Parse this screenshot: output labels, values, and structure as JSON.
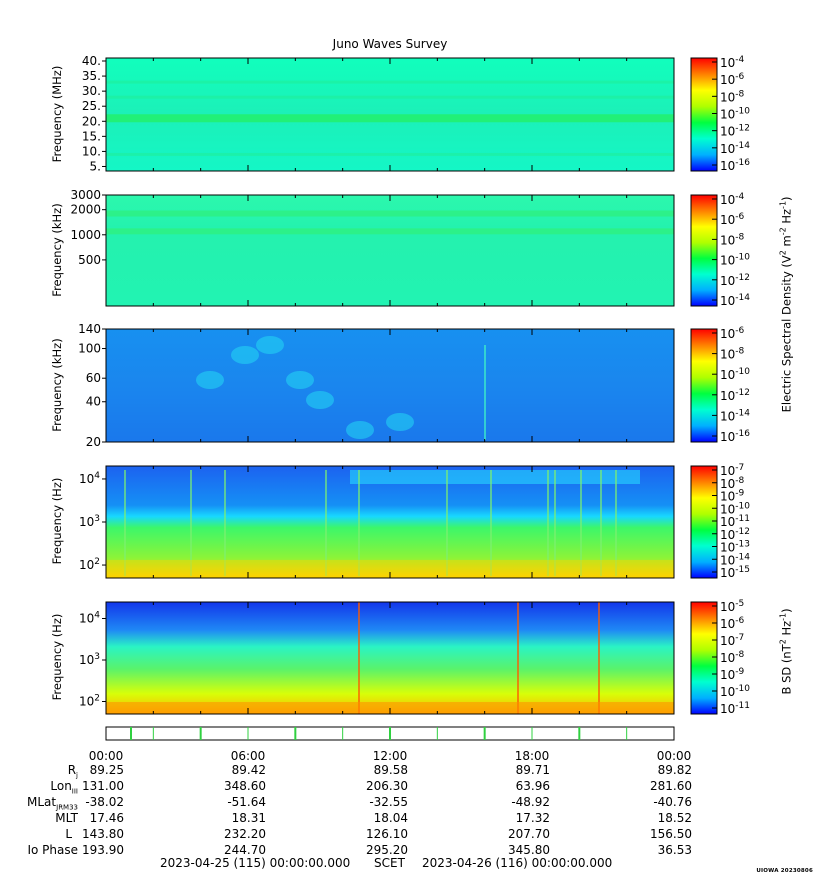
{
  "title": "Juno Waves Survey",
  "colors": {
    "spectrum": [
      "#0000ff",
      "#00b0ff",
      "#00ffd0",
      "#00ff40",
      "#b0ff00",
      "#ffff00",
      "#ff8000",
      "#ff0000"
    ]
  },
  "panels": [
    {
      "ylabel": "Frequency (MHz)",
      "yscale": "linear",
      "ylim": [
        3.5,
        41
      ],
      "yticks": [
        "5.",
        "10.",
        "15.",
        "20.",
        "25.",
        "30.",
        "35.",
        "40."
      ],
      "cbar_ticks": [
        {
          "base": "10",
          "exp": "-4"
        },
        {
          "base": "10",
          "exp": "-6"
        },
        {
          "base": "10",
          "exp": "-8"
        },
        {
          "base": "10",
          "exp": "-10"
        },
        {
          "base": "10",
          "exp": "-12"
        },
        {
          "base": "10",
          "exp": "-14"
        },
        {
          "base": "10",
          "exp": "-16"
        }
      ]
    },
    {
      "ylabel": "Frequency (kHz)",
      "yscale": "log",
      "ylim": [
        140,
        3000
      ],
      "yticks": [
        "500",
        "1000",
        "2000",
        "3000"
      ],
      "cbar_ticks": [
        {
          "base": "10",
          "exp": "-4"
        },
        {
          "base": "10",
          "exp": "-6"
        },
        {
          "base": "10",
          "exp": "-8"
        },
        {
          "base": "10",
          "exp": "-10"
        },
        {
          "base": "10",
          "exp": "-12"
        },
        {
          "base": "10",
          "exp": "-14"
        }
      ]
    },
    {
      "ylabel": "Frequency (kHz)",
      "yscale": "log",
      "ylim": [
        20,
        140
      ],
      "yticks": [
        "20",
        "40",
        "60",
        "100",
        "140"
      ],
      "cbar_ticks": [
        {
          "base": "10",
          "exp": "-6"
        },
        {
          "base": "10",
          "exp": "-8"
        },
        {
          "base": "10",
          "exp": "-10"
        },
        {
          "base": "10",
          "exp": "-12"
        },
        {
          "base": "10",
          "exp": "-14"
        },
        {
          "base": "10",
          "exp": "-16"
        }
      ]
    },
    {
      "ylabel": "Frequency (Hz)",
      "yscale": "log",
      "ylim": [
        50,
        20000
      ],
      "yticks": [
        {
          "base": "10",
          "exp": "2"
        },
        {
          "base": "10",
          "exp": "3"
        },
        {
          "base": "10",
          "exp": "4"
        }
      ],
      "cbar_ticks": [
        {
          "base": "10",
          "exp": "-7"
        },
        {
          "base": "10",
          "exp": "-8"
        },
        {
          "base": "10",
          "exp": "-9"
        },
        {
          "base": "10",
          "exp": "-10"
        },
        {
          "base": "10",
          "exp": "-11"
        },
        {
          "base": "10",
          "exp": "-12"
        },
        {
          "base": "10",
          "exp": "-13"
        },
        {
          "base": "10",
          "exp": "-14"
        },
        {
          "base": "10",
          "exp": "-15"
        }
      ]
    },
    {
      "ylabel": "Frequency (Hz)",
      "yscale": "log",
      "ylim": [
        50,
        25000
      ],
      "yticks": [
        {
          "base": "10",
          "exp": "2"
        },
        {
          "base": "10",
          "exp": "3"
        },
        {
          "base": "10",
          "exp": "4"
        }
      ],
      "cbar_ticks": [
        {
          "base": "10",
          "exp": "-5"
        },
        {
          "base": "10",
          "exp": "-6"
        },
        {
          "base": "10",
          "exp": "-7"
        },
        {
          "base": "10",
          "exp": "-8"
        },
        {
          "base": "10",
          "exp": "-9"
        },
        {
          "base": "10",
          "exp": "-10"
        },
        {
          "base": "10",
          "exp": "-11"
        }
      ]
    }
  ],
  "colorbar_labels": {
    "electric": {
      "pre": "Electric Spectral Density (V",
      "s1": "2",
      "mid1": " m",
      "s2": "-2",
      "mid2": " Hz",
      "s3": "-1",
      "post": ")"
    },
    "magnetic": {
      "pre": "B SD (nT",
      "s1": "2",
      "mid1": " Hz",
      "s2": "-1",
      "post": ")"
    }
  },
  "time_ticks": [
    "00:00",
    "06:00",
    "12:00",
    "18:00",
    "00:00"
  ],
  "ephemeris": {
    "rows": [
      {
        "key": "R",
        "sub": "j",
        "values": [
          "89.25",
          "89.42",
          "89.58",
          "89.71",
          "89.82"
        ]
      },
      {
        "key": "Lon",
        "sub": "III",
        "values": [
          "131.00",
          "348.60",
          "206.30",
          "63.96",
          "281.60"
        ]
      },
      {
        "key": "MLat",
        "sub": "JRM33",
        "values": [
          "-38.02",
          "-51.64",
          "-32.55",
          "-48.92",
          "-40.76"
        ]
      },
      {
        "key": "MLT",
        "sub": "",
        "values": [
          "17.46",
          "18.31",
          "18.04",
          "17.32",
          "18.52"
        ]
      },
      {
        "key": "L",
        "sub": "",
        "values": [
          "143.80",
          "232.20",
          "126.10",
          "207.70",
          "156.50"
        ]
      },
      {
        "key": "Io Phase",
        "sub": "",
        "values": [
          "193.90",
          "244.70",
          "295.20",
          "345.80",
          "36.53"
        ]
      }
    ]
  },
  "footer": {
    "start": "2023-04-25 (115) 00:00:00.000",
    "scet": "SCET",
    "end": "2023-04-26 (116) 00:00:00.000"
  },
  "credit": "UIOWA 20230806",
  "chart_data": [
    {
      "type": "heatmap",
      "title": "Juno Waves Survey",
      "ylabel": "Frequency (MHz)",
      "x_range": [
        "00:00",
        "00:00"
      ],
      "ylim": [
        3.5,
        41
      ],
      "features": [
        {
          "kind": "band",
          "freq_MHz": 21,
          "level": "1e-11"
        }
      ],
      "background_level": "1e-12",
      "colorbar_range": [
        "1e-16",
        "1e-4"
      ]
    },
    {
      "type": "heatmap",
      "ylabel": "Frequency (kHz)",
      "x_range": [
        "00:00",
        "00:00"
      ],
      "ylim": [
        140,
        3000
      ],
      "features": [
        {
          "kind": "band",
          "freq_kHz": 1800,
          "level": "1e-11"
        },
        {
          "kind": "band",
          "freq_kHz": 1100,
          "level": "1e-11"
        }
      ],
      "background_level": "1e-12",
      "colorbar_range": [
        "1e-14",
        "1e-4"
      ]
    },
    {
      "type": "heatmap",
      "ylabel": "Frequency (kHz)",
      "x_range": [
        "00:00",
        "00:00"
      ],
      "ylim": [
        20,
        140
      ],
      "background_level": "1e-14",
      "colorbar_range": [
        "1e-16",
        "1e-6"
      ]
    },
    {
      "type": "heatmap",
      "ylabel": "Frequency (Hz)",
      "x_range": [
        "00:00",
        "00:00"
      ],
      "ylim": [
        50,
        20000
      ],
      "features": [
        {
          "kind": "band",
          "freq_Hz": 15000,
          "level": "1e-13"
        }
      ],
      "background_level": "1e-11",
      "colorbar_range": [
        "1e-15",
        "1e-7"
      ]
    },
    {
      "type": "heatmap",
      "ylabel": "Frequency (Hz)",
      "x_range": [
        "00:00",
        "00:00"
      ],
      "ylim": [
        50,
        25000
      ],
      "background_level": "1e-8",
      "colorbar_range": [
        "1e-11",
        "1e-5"
      ]
    }
  ]
}
